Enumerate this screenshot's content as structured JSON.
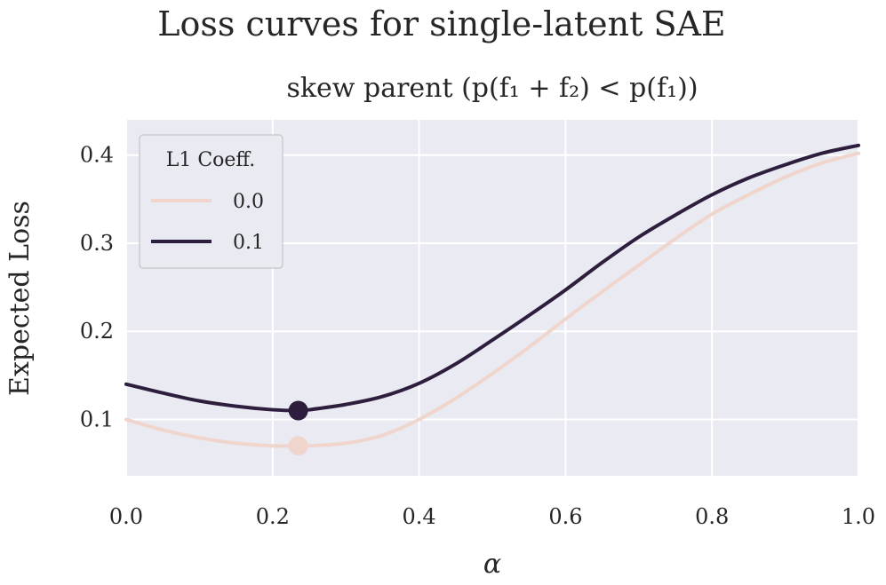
{
  "chart_data": {
    "type": "line",
    "title": "Loss curves for single-latent SAE",
    "subtitle": "skew parent (p(f₁ + f₂) < p(f₁))",
    "xlabel": "α",
    "ylabel": "Expected Loss",
    "xlim": [
      0.0,
      1.0
    ],
    "ylim": [
      0.036,
      0.44
    ],
    "xticks": [
      0.0,
      0.2,
      0.4,
      0.6,
      0.8,
      1.0
    ],
    "xtick_labels": [
      "0.0",
      "0.2",
      "0.4",
      "0.6",
      "0.8",
      "1.0"
    ],
    "yticks": [
      0.1,
      0.2,
      0.3,
      0.4
    ],
    "ytick_labels": [
      "0.1",
      "0.2",
      "0.3",
      "0.4"
    ],
    "grid": true,
    "legend": {
      "title": "L1 Coeff.",
      "placement": "top-left"
    },
    "series": [
      {
        "name": "0.0",
        "color": "#f0d5cd",
        "x": [
          0.0,
          0.05,
          0.1,
          0.15,
          0.2,
          0.235,
          0.25,
          0.3,
          0.35,
          0.4,
          0.45,
          0.5,
          0.55,
          0.6,
          0.65,
          0.7,
          0.75,
          0.8,
          0.85,
          0.9,
          0.95,
          1.0
        ],
        "y": [
          0.1,
          0.088,
          0.079,
          0.073,
          0.07,
          0.07,
          0.07,
          0.073,
          0.082,
          0.1,
          0.124,
          0.152,
          0.182,
          0.214,
          0.245,
          0.275,
          0.305,
          0.333,
          0.355,
          0.375,
          0.391,
          0.402
        ],
        "minimum": {
          "x": 0.235,
          "y": 0.07
        }
      },
      {
        "name": "0.1",
        "color": "#2d1e3e",
        "x": [
          0.0,
          0.05,
          0.1,
          0.15,
          0.2,
          0.235,
          0.25,
          0.3,
          0.35,
          0.4,
          0.45,
          0.5,
          0.55,
          0.6,
          0.65,
          0.7,
          0.75,
          0.8,
          0.85,
          0.9,
          0.95,
          1.0
        ],
        "y": [
          0.14,
          0.13,
          0.121,
          0.115,
          0.111,
          0.11,
          0.111,
          0.117,
          0.126,
          0.141,
          0.163,
          0.19,
          0.218,
          0.247,
          0.278,
          0.307,
          0.332,
          0.355,
          0.374,
          0.389,
          0.402,
          0.411
        ],
        "minimum": {
          "x": 0.235,
          "y": 0.11
        }
      }
    ]
  },
  "colors": {
    "plot_background": "#eaeaf2",
    "grid": "#ffffff",
    "legend_background": "#eaeaf2",
    "legend_border": "#cccccc"
  }
}
